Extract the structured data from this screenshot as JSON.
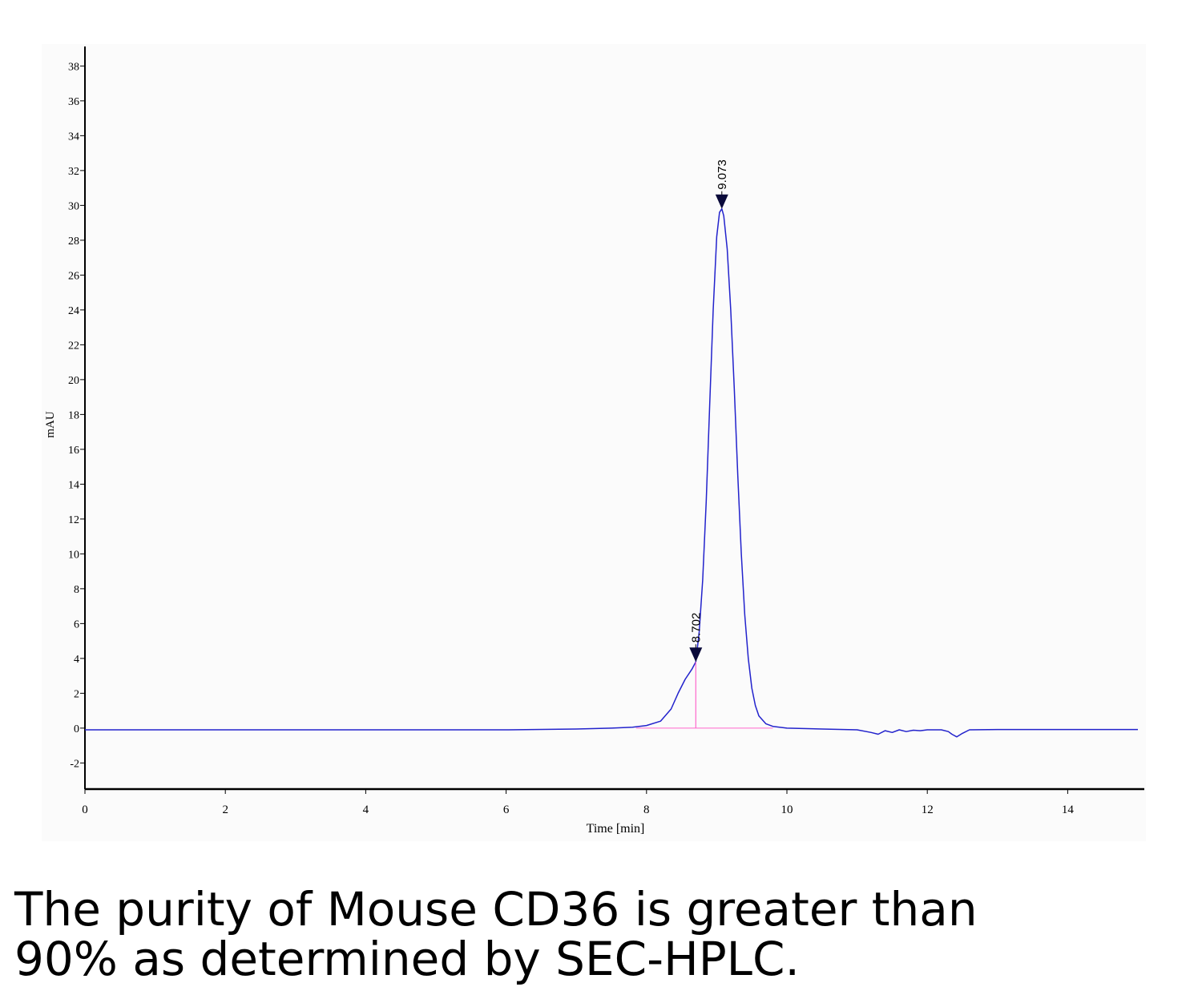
{
  "chart_data": {
    "type": "line",
    "xlabel": "Time [min]",
    "ylabel": "mAU",
    "xlim": [
      0,
      15
    ],
    "ylim": [
      -3.5,
      38.5
    ],
    "xticks": [
      "0",
      "2",
      "4",
      "6",
      "8",
      "10",
      "12",
      "14"
    ],
    "yticks": [
      "-2",
      "0",
      "2",
      "4",
      "6",
      "8",
      "10",
      "12",
      "14",
      "16",
      "18",
      "20",
      "22",
      "24",
      "26",
      "28",
      "30",
      "32",
      "34",
      "36",
      "38"
    ],
    "series": [
      {
        "color": "#2222cc",
        "x": [
          0,
          2,
          4,
          6,
          7,
          7.5,
          7.8,
          8.0,
          8.2,
          8.35,
          8.45,
          8.55,
          8.65,
          8.702,
          8.75,
          8.8,
          8.85,
          8.9,
          8.95,
          9.0,
          9.04,
          9.073,
          9.1,
          9.15,
          9.2,
          9.25,
          9.3,
          9.35,
          9.4,
          9.45,
          9.5,
          9.55,
          9.6,
          9.7,
          9.8,
          10.0,
          10.5,
          11.0,
          11.2,
          11.3,
          11.4,
          11.5,
          11.6,
          11.7,
          11.8,
          11.9,
          12.0,
          12.2,
          12.3,
          12.35,
          12.42,
          12.5,
          12.6,
          13.0,
          14.0,
          15.0
        ],
        "y": [
          -0.1,
          -0.1,
          -0.1,
          -0.1,
          -0.05,
          0.0,
          0.05,
          0.15,
          0.4,
          1.1,
          2.0,
          2.8,
          3.4,
          3.8,
          5.5,
          8.5,
          13.0,
          18.5,
          24.0,
          28.2,
          29.6,
          29.8,
          29.4,
          27.5,
          24.0,
          19.5,
          14.5,
          10.0,
          6.5,
          4.0,
          2.3,
          1.3,
          0.7,
          0.25,
          0.1,
          0.0,
          -0.05,
          -0.1,
          -0.25,
          -0.35,
          -0.15,
          -0.25,
          -0.1,
          -0.2,
          -0.12,
          -0.15,
          -0.1,
          -0.1,
          -0.2,
          -0.35,
          -0.5,
          -0.3,
          -0.1,
          -0.08,
          -0.08,
          -0.08
        ]
      }
    ],
    "peaks": [
      {
        "label": "8.702",
        "x": 8.702,
        "y": 3.8,
        "drop_line": true
      },
      {
        "label": "9.073",
        "x": 9.073,
        "y": 29.8,
        "drop_line": false
      }
    ],
    "baseline_color": "#ff66cc",
    "marker_color": "#0a0a3a",
    "grid": false,
    "background": "#fbfbfb"
  },
  "caption": {
    "line1": "The purity of Mouse CD36 is greater than",
    "line2": "90% as determined by SEC-HPLC."
  }
}
